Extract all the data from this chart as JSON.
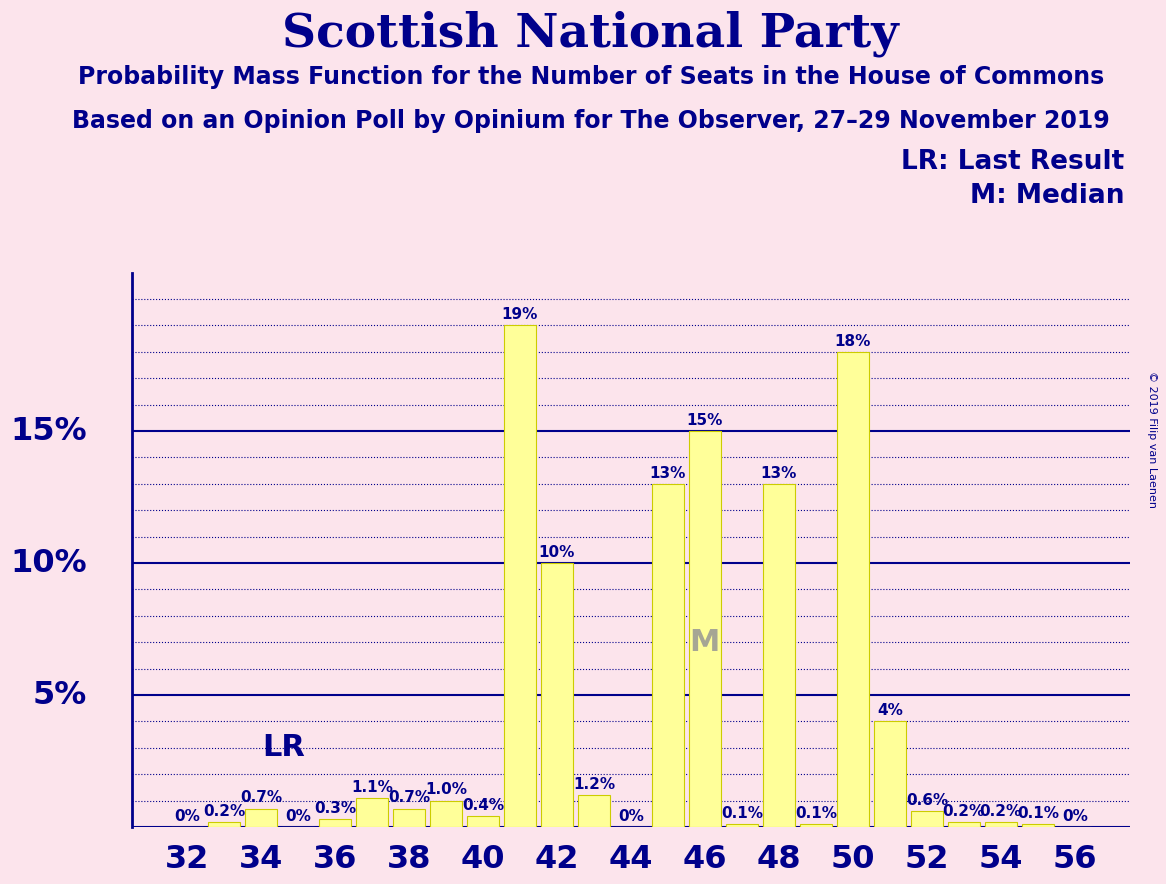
{
  "title": "Scottish National Party",
  "subtitle1": "Probability Mass Function for the Number of Seats in the House of Commons",
  "subtitle2": "Based on an Opinion Poll by Opinium for The Observer, 27–29 November 2019",
  "copyright": "© 2019 Filip van Laenen",
  "legend_lr": "LR: Last Result",
  "legend_m": "M: Median",
  "background_color": "#fce4ec",
  "bar_color": "#ffff99",
  "bar_edge_color": "#cccc00",
  "text_color": "#00008B",
  "grid_color": "#00008B",
  "seats": [
    32,
    33,
    34,
    35,
    36,
    37,
    38,
    39,
    40,
    41,
    42,
    43,
    44,
    45,
    46,
    47,
    48,
    49,
    50,
    51,
    52,
    53,
    54,
    55,
    56
  ],
  "probabilities": [
    0.0,
    0.2,
    0.7,
    0.0,
    0.3,
    1.1,
    0.7,
    1.0,
    0.4,
    19.0,
    10.0,
    1.2,
    0.0,
    13.0,
    15.0,
    0.1,
    13.0,
    0.1,
    18.0,
    4.0,
    0.6,
    0.2,
    0.2,
    0.1,
    0.0
  ],
  "labels": [
    "0%",
    "0.2%",
    "0.7%",
    "0%",
    "0.3%",
    "1.1%",
    "0.7%",
    "1.0%",
    "0.4%",
    "19%",
    "10%",
    "1.2%",
    "0%",
    "13%",
    "15%",
    "0.1%",
    "13%",
    "0.1%",
    "18%",
    "4%",
    "0.6%",
    "0.2%",
    "0.2%",
    "0.1%",
    "0%"
  ],
  "last_result_seat": 35,
  "median_seat": 46,
  "ylim": [
    0,
    21
  ],
  "solid_lines": [
    0,
    5,
    10,
    15
  ],
  "ytick_labels": {
    "5": "5%",
    "10": "10%",
    "15": "15%"
  },
  "xtick_seats": [
    32,
    34,
    36,
    38,
    40,
    42,
    44,
    46,
    48,
    50,
    52,
    54,
    56
  ],
  "title_fontsize": 34,
  "subtitle_fontsize": 17,
  "label_fontsize": 11,
  "tick_fontsize": 23,
  "legend_fontsize": 19,
  "lr_label_fontsize": 22,
  "m_label_fontsize": 22
}
